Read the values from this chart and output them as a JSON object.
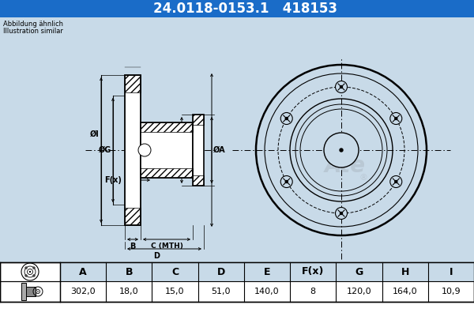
{
  "title_part": "24.0118-0153.1",
  "title_code": "418153",
  "bg_color_top": "#1a6cc8",
  "bg_color_diagram": "#c8dae8",
  "bg_color_white": "#ffffff",
  "text_note1": "Abbildung ähnlich",
  "text_note2": "Illustration similar",
  "table_headers": [
    "A",
    "B",
    "C",
    "D",
    "E",
    "F(x)",
    "G",
    "H",
    "I"
  ],
  "table_values": [
    "302,0",
    "18,0",
    "15,0",
    "51,0",
    "140,0",
    "8",
    "120,0",
    "164,0",
    "10,9"
  ]
}
